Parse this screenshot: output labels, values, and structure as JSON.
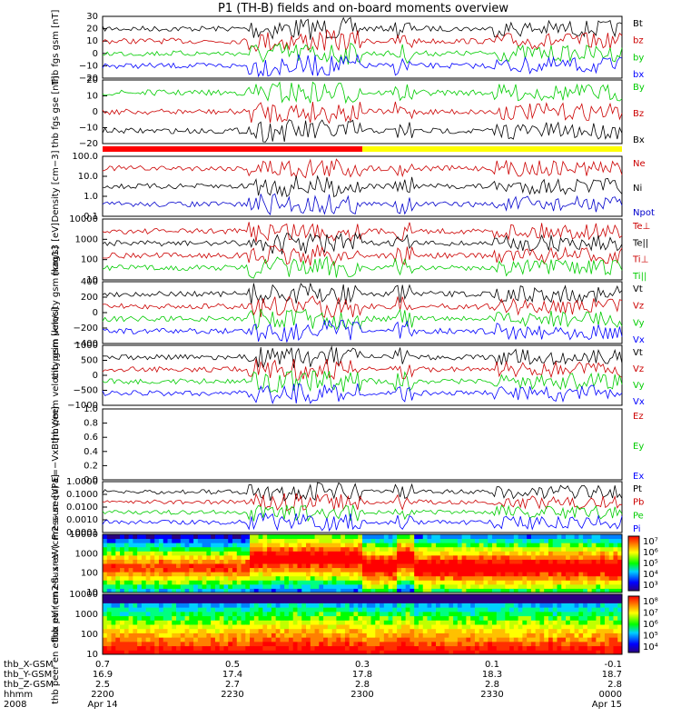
{
  "chart_data": {
    "type": "line",
    "title": "P1 (TH-B) fields and on-board moments overview",
    "xrange": [
      "2008-04-14 22:00",
      "2008-04-15 00:00"
    ],
    "ticks": {
      "rows": [
        {
          "name": "thb_X-GSM",
          "values": [
            "0.7",
            "0.5",
            "0.3",
            "0.1",
            "-0.1"
          ]
        },
        {
          "name": "thb_Y-GSM",
          "values": [
            "16.9",
            "17.4",
            "17.8",
            "18.3",
            "18.7"
          ]
        },
        {
          "name": "thb_Z-GSM",
          "values": [
            "2.5",
            "2.7",
            "2.8",
            "2.8",
            "2.8"
          ]
        },
        {
          "name": "hhmm",
          "values": [
            "2200",
            "2230",
            "2300",
            "2330",
            "0000"
          ]
        },
        {
          "name": "2008",
          "values": [
            "Apr 14",
            "",
            "",
            "",
            "Apr 15"
          ]
        }
      ]
    },
    "panels": [
      {
        "id": "fgs_gsm",
        "ylabel": [
          "thb",
          "fgs",
          "gsm",
          "[nT]"
        ],
        "ylim": [
          -20,
          30
        ],
        "log": false,
        "ticks": [
          "30",
          "20",
          "10",
          "0",
          "−10",
          "−20"
        ],
        "series": [
          {
            "name": "Bt",
            "color": "#000000"
          },
          {
            "name": "bz",
            "color": "#cc0000"
          },
          {
            "name": "by",
            "color": "#00cc00"
          },
          {
            "name": "bx",
            "color": "#0000ff"
          }
        ]
      },
      {
        "id": "fgs_gse",
        "ylabel": [
          "thb",
          "fgs",
          "gse",
          "[nT]"
        ],
        "ylim": [
          -25,
          20
        ],
        "log": false,
        "ticks": [
          "20",
          "10",
          "0",
          "−10",
          "−20"
        ],
        "series": [
          {
            "name": "By",
            "color": "#00cc00"
          },
          {
            "name": "Bz",
            "color": "#cc0000"
          },
          {
            "name": "Bx",
            "color": "#000000"
          }
        ]
      },
      {
        "id": "density",
        "ylabel": [
          "Density",
          "[cm−3]"
        ],
        "ylim": [
          0.1,
          100
        ],
        "log": true,
        "ticks": [
          "100.0",
          "10.0",
          "1.0",
          "0.1"
        ],
        "series": [
          {
            "name": "Ne",
            "color": "#cc0000"
          },
          {
            "name": "Ni",
            "color": "#000000"
          },
          {
            "name": "Npot",
            "color": "#0000cc"
          }
        ]
      },
      {
        "id": "temperature",
        "ylabel": [
          "mag13",
          "[eV]"
        ],
        "ylim": [
          10,
          10000
        ],
        "log": true,
        "ticks": [
          "10000",
          "1000",
          "100",
          "10"
        ],
        "series": [
          {
            "name": "Te⊥",
            "color": "#cc0000"
          },
          {
            "name": "Te||",
            "color": "#000000"
          },
          {
            "name": "Ti⊥",
            "color": "#cc0000"
          },
          {
            "name": "Ti||",
            "color": "#00cc00"
          }
        ]
      },
      {
        "id": "peim_velocity",
        "ylabel": [
          "thb",
          "peim",
          "velocity",
          "gsm",
          "[km/s]"
        ],
        "ylim": [
          -400,
          400
        ],
        "log": false,
        "ticks": [
          "400",
          "200",
          "0",
          "−200",
          "−400"
        ],
        "series": [
          {
            "name": "Vt",
            "color": "#000000"
          },
          {
            "name": "Vz",
            "color": "#cc0000"
          },
          {
            "name": "Vy",
            "color": "#00cc00"
          },
          {
            "name": "Vx",
            "color": "#0000ff"
          }
        ]
      },
      {
        "id": "peem_velocity",
        "ylabel": [
          "thb",
          "peem",
          "velocity",
          "gsm",
          "[km/s]"
        ],
        "ylim": [
          -1000,
          1000
        ],
        "log": false,
        "ticks": [
          "1000",
          "500",
          "0",
          "−500",
          "−1000"
        ],
        "series": [
          {
            "name": "Vt",
            "color": "#000000"
          },
          {
            "name": "Vz",
            "color": "#cc0000"
          },
          {
            "name": "Vy",
            "color": "#00cc00"
          },
          {
            "name": "Vx",
            "color": "#0000ff"
          }
        ]
      },
      {
        "id": "efield",
        "ylabel": [
          "E=−VxB",
          "[mV/m]"
        ],
        "ylim": [
          0,
          1
        ],
        "log": false,
        "ticks": [
          "1.0",
          "0.8",
          "0.6",
          "0.4",
          "0.2",
          "0.0"
        ],
        "series": [
          {
            "name": "Ez",
            "color": "#cc0000"
          },
          {
            "name": "Ey",
            "color": "#00cc00"
          },
          {
            "name": "Ex",
            "color": "#0000ff"
          }
        ]
      },
      {
        "id": "pressure",
        "ylabel": [
          "Pressure",
          "[nPa]"
        ],
        "ylim": [
          0.0001,
          1
        ],
        "log": true,
        "ticks": [
          "1.0000",
          "0.1000",
          "0.0100",
          "0.0010",
          "0.0001"
        ],
        "series": [
          {
            "name": "Pt",
            "color": "#000000"
          },
          {
            "name": "Pb",
            "color": "#cc0000"
          },
          {
            "name": "Pe",
            "color": "#00cc00"
          },
          {
            "name": "Pi",
            "color": "#0000ff"
          }
        ]
      },
      {
        "id": "peir_spec",
        "ylabel": [
          "thb",
          "peir",
          "en",
          "eflux",
          "eV",
          "(cm2-s-",
          "sr-eV)"
        ],
        "type": "heatmap",
        "ylim": [
          10,
          10000
        ],
        "log": true,
        "ticks": [
          "10000",
          "1000",
          "100",
          "10"
        ],
        "colorbar": [
          "10⁷",
          "10⁶",
          "10⁵",
          "10⁴",
          "10³"
        ]
      },
      {
        "id": "peer_spec",
        "ylabel": [
          "thb",
          "peer",
          "en",
          "eflux",
          "eV",
          "(cm2-s-",
          "sr-eV)"
        ],
        "type": "heatmap",
        "ylim": [
          10,
          10000
        ],
        "log": true,
        "ticks": [
          "10000",
          "1000",
          "100",
          "10"
        ],
        "colorbar": [
          "10⁸",
          "10⁷",
          "10⁶",
          "10⁵",
          "10⁴"
        ]
      }
    ],
    "mode_bar": [
      {
        "color": "#ff0000",
        "from": 0.0,
        "to": 0.5
      },
      {
        "color": "#ffff00",
        "from": 0.5,
        "to": 1.0
      }
    ]
  }
}
